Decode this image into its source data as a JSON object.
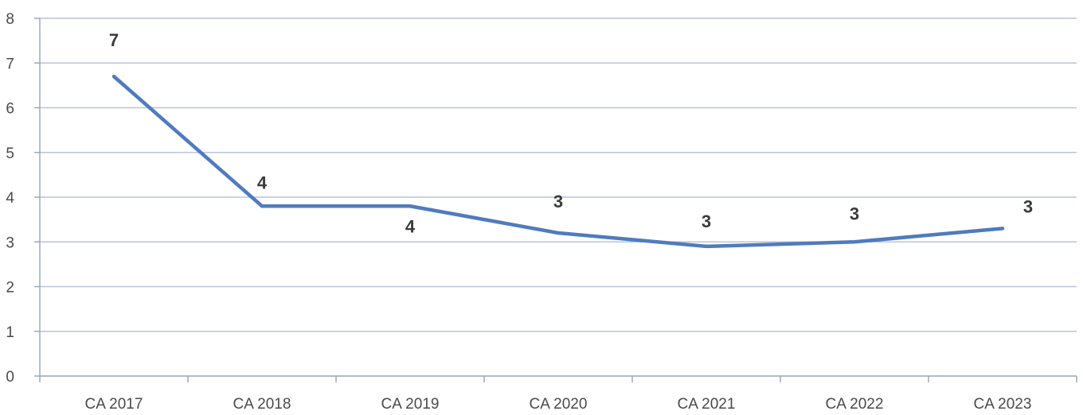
{
  "chart_data": {
    "type": "line",
    "title": "",
    "xlabel": "",
    "ylabel": "",
    "categories": [
      "CA 2017",
      "CA 2018",
      "CA 2019",
      "CA 2020",
      "CA 2021",
      "CA 2022",
      "CA 2023"
    ],
    "series": [
      {
        "values": [
          6.7,
          3.8,
          3.8,
          3.2,
          2.9,
          3.0,
          3.3
        ],
        "data_labels": [
          "7",
          "4",
          "4",
          "3",
          "3",
          "3",
          "3"
        ],
        "color": "#4f7bbf"
      }
    ],
    "ylim": [
      0,
      8
    ],
    "yticks": [
      "0",
      "1",
      "2",
      "3",
      "4",
      "5",
      "6",
      "7",
      "8"
    ],
    "grid": true,
    "legend": "none"
  }
}
